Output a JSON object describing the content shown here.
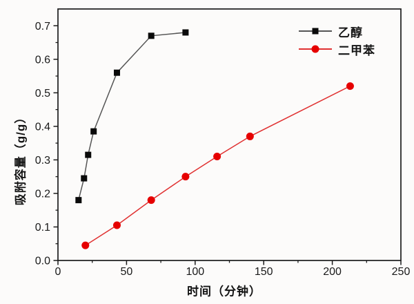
{
  "figure": {
    "background": "#fcfbfa",
    "frame_color": "#1a1a1a",
    "tick_label_color": "#1a1a1a",
    "xlabel": "时间（分钟）",
    "ylabel": "吸附容量（g/g）"
  },
  "legend": {
    "position": "upper-right",
    "items": [
      {
        "label": "乙醇",
        "marker": "square",
        "marker_color": "#0a0a0a",
        "line_color": "#555555"
      },
      {
        "label": "二甲苯",
        "marker": "circle",
        "marker_color": "#e60000",
        "line_color": "#e03030"
      }
    ]
  },
  "chart_data": {
    "type": "line",
    "title": "",
    "xlabel": "时间（分钟）",
    "ylabel": "吸附容量（g/g）",
    "xlim": [
      0,
      250
    ],
    "ylim": [
      0,
      0.75
    ],
    "grid": false,
    "legend_position": "upper-right",
    "x_major_ticks": [
      0,
      50,
      100,
      150,
      200,
      250
    ],
    "x_tick_labels": [
      "0",
      "50",
      "100",
      "150",
      "200",
      "250"
    ],
    "x_minor_ticks": [
      25,
      75,
      125,
      175,
      225
    ],
    "y_major_ticks": [
      0,
      0.1,
      0.2,
      0.3,
      0.4,
      0.5,
      0.6,
      0.7
    ],
    "y_tick_labels": [
      "0.0",
      "0.1",
      "0.2",
      "0.3",
      "0.4",
      "0.5",
      "0.6",
      "0.7"
    ],
    "y_minor_ticks": [
      0.05,
      0.15,
      0.25,
      0.35,
      0.45,
      0.55,
      0.65
    ],
    "series": [
      {
        "id": "ethanol",
        "name": "乙醇",
        "marker": "square",
        "marker_color": "#0a0a0a",
        "line_color": "#555555",
        "x": [
          15,
          19,
          22,
          26,
          43,
          68,
          93
        ],
        "y": [
          0.18,
          0.245,
          0.315,
          0.385,
          0.56,
          0.67,
          0.68
        ]
      },
      {
        "id": "xylene",
        "name": "二甲苯",
        "marker": "circle",
        "marker_color": "#e60000",
        "line_color": "#e03030",
        "x": [
          20,
          43,
          68,
          93,
          116,
          140,
          213
        ],
        "y": [
          0.045,
          0.105,
          0.18,
          0.25,
          0.31,
          0.37,
          0.52
        ]
      }
    ]
  }
}
